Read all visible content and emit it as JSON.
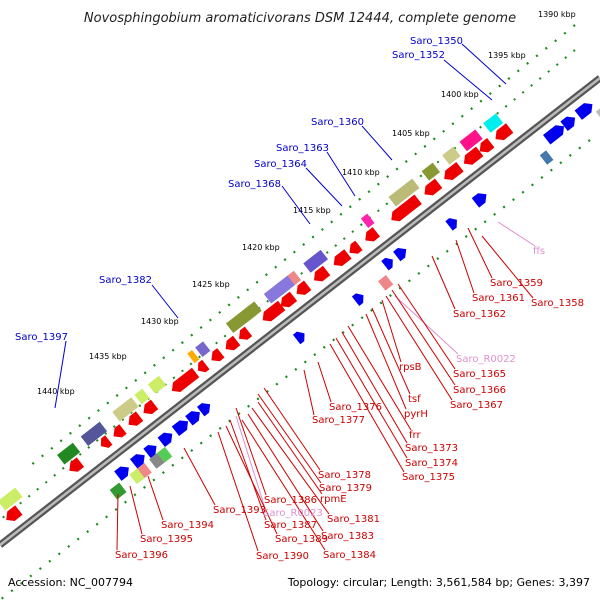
{
  "title": "Novosphingobium aromaticivorans DSM 12444, complete genome",
  "footer": {
    "accession": "Accession: NC_007794",
    "stats": "Topology: circular; Length: 3,561,584 bp; Genes: 3,397"
  },
  "colors": {
    "blue_label": "#0000cc",
    "red_label": "#cc0000",
    "pink_label": "#e090d0",
    "dots": "#1a8a1a",
    "backbone": "#777777"
  },
  "kbp_ticks": [
    "1390 kbp",
    "1395 kbp",
    "1400 kbp",
    "1405 kbp",
    "1410 kbp",
    "1415 kbp",
    "1420 kbp",
    "1425 kbp",
    "1430 kbp",
    "1435 kbp",
    "1440 kbp"
  ],
  "top_labels": [
    "Saro_1350",
    "Saro_1352",
    "Saro_1360",
    "Saro_1363",
    "Saro_1364",
    "Saro_1368",
    "Saro_1382",
    "Saro_1397"
  ],
  "bottom_labels": [
    "ffs",
    "Saro_1359",
    "Saro_1361",
    "Saro_1358",
    "Saro_1362",
    "Saro_R0022",
    "rpsB",
    "Saro_1365",
    "Saro_1366",
    "Saro_1367",
    "tsf",
    "pyrH",
    "Saro_1376",
    "Saro_1377",
    "frr",
    "Saro_1373",
    "Saro_1374",
    "Saro_1375",
    "Saro_1378",
    "Saro_1379",
    "rpmE",
    "Saro_1386",
    "Saro_R0023",
    "Saro_1381",
    "Saro_1387",
    "Saro_1393",
    "Saro_1383",
    "Saro_1389",
    "Saro_1394",
    "Saro_1384",
    "Saro_1390",
    "Saro_1395",
    "Saro_1396"
  ]
}
